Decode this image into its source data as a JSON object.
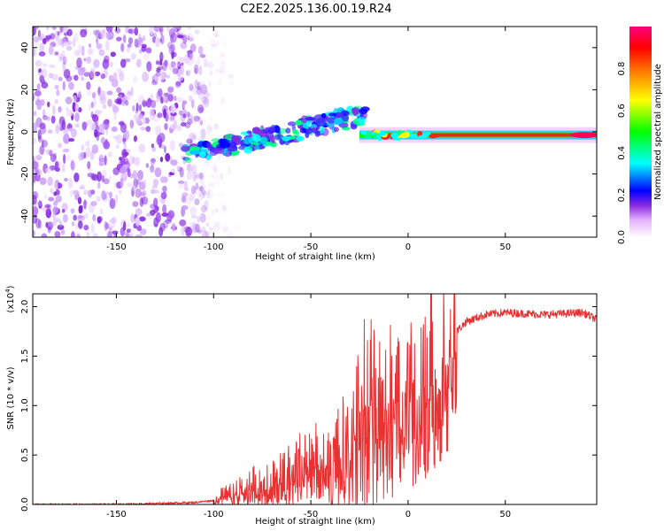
{
  "title": "C2E2.2025.136.00.19.R24",
  "chart_data": [
    {
      "type": "heatmap",
      "title": "C2E2.2025.136.00.19.R24",
      "xlabel": "Height of straight line (km)",
      "ylabel": "Frequency (Hz)",
      "xlim": [
        -193,
        97
      ],
      "ylim": [
        -50,
        50
      ],
      "xticks": [
        -150,
        -100,
        -50,
        0,
        50
      ],
      "yticks": [
        -40,
        -20,
        0,
        20,
        40
      ],
      "colorbar": {
        "label": "Normalized spectral amplitude",
        "range": [
          0,
          1
        ],
        "ticks": [
          "0.0",
          "0.2",
          "0.4",
          "0.6",
          "0.8"
        ],
        "ticks_values": [
          0,
          0.2,
          0.4,
          0.6,
          0.8
        ],
        "colors": [
          "#ffffff",
          "#e6b3ff",
          "#8a2be2",
          "#0000ff",
          "#00ffff",
          "#00ff00",
          "#ffff00",
          "#ff8000",
          "#ff0000",
          "#ff0080"
        ]
      },
      "regions": [
        {
          "name": "noise",
          "x": [
            -193,
            -103
          ],
          "freq": [
            -50,
            50
          ],
          "amplitude": 0.12
        },
        {
          "name": "rising-signal",
          "x": [
            -115,
            -22
          ],
          "freq_start": -11,
          "freq_end": 8,
          "amplitude": 0.4
        },
        {
          "name": "stable-carrier",
          "x": [
            -25,
            97
          ],
          "freq": [
            -3,
            0
          ],
          "amplitude": 0.95
        }
      ]
    },
    {
      "type": "line",
      "xlabel": "Height of straight line (km)",
      "ylabel": "SNR (10 * v/v)",
      "yscale_label": "(x10",
      "yscale_exp": "4",
      "xlim": [
        -193,
        97
      ],
      "ylim": [
        0,
        2.13
      ],
      "xticks": [
        -150,
        -100,
        -50,
        0,
        50
      ],
      "yticks": [
        "0.0",
        "0.5",
        "1.0",
        "1.5",
        "2.0"
      ],
      "yticks_values": [
        0,
        0.5,
        1.0,
        1.5,
        2.0
      ],
      "color": "#e83232",
      "series": [
        {
          "name": "SNR",
          "x": [
            -193,
            -150,
            -110,
            -100,
            -95,
            -90,
            -85,
            -80,
            -75,
            -70,
            -65,
            -60,
            -55,
            -50,
            -45,
            -40,
            -35,
            -30,
            -25,
            -20,
            -15,
            -10,
            -5,
            0,
            5,
            10,
            15,
            20,
            25,
            30,
            40,
            50,
            60,
            70,
            80,
            90,
            97
          ],
          "values": [
            0.0,
            0.0,
            0.02,
            0.04,
            0.1,
            0.12,
            0.18,
            0.2,
            0.24,
            0.22,
            0.35,
            0.3,
            0.4,
            0.45,
            0.42,
            0.38,
            0.6,
            0.55,
            0.9,
            1.1,
            1.0,
            1.05,
            1.1,
            1.2,
            1.3,
            1.35,
            1.45,
            1.6,
            1.75,
            1.85,
            1.92,
            1.94,
            1.93,
            1.92,
            1.93,
            1.94,
            1.87
          ]
        }
      ]
    }
  ]
}
